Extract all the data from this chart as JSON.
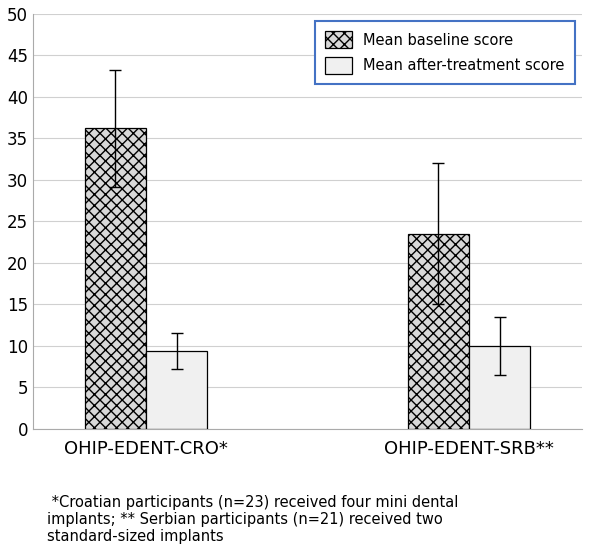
{
  "groups": [
    "OHIP-EDENT-CRO*",
    "OHIP-EDENT-SRB**"
  ],
  "baseline_values": [
    36.2,
    23.5
  ],
  "aftertreatment_values": [
    9.4,
    10.0
  ],
  "baseline_errors": [
    7.0,
    8.5
  ],
  "aftertreatment_errors": [
    2.2,
    3.5
  ],
  "ylim": [
    0,
    50
  ],
  "yticks": [
    0,
    5,
    10,
    15,
    20,
    25,
    30,
    35,
    40,
    45,
    50
  ],
  "legend_labels": [
    "Mean baseline score",
    "Mean after-treatment score"
  ],
  "baseline_facecolor": "#d8d8d8",
  "aftertreatment_facecolor": "#f0f0f0",
  "bar_width": 0.38,
  "group_centers": [
    1.0,
    3.0
  ],
  "caption": " *Croatian participants (n=23) received four mini dental\nimplants; ** Serbian participants (n=21) received two\nstandard-sized implants",
  "legend_border_color": "#4472c4",
  "grid_color": "#d0d0d0",
  "background_color": "#ffffff",
  "tick_fontsize": 12,
  "group_label_fontsize": 13,
  "caption_fontsize": 10.5,
  "legend_fontsize": 10.5,
  "spine_color": "#aaaaaa"
}
